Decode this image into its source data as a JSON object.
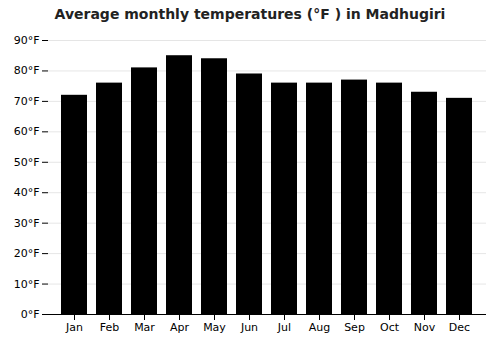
{
  "chart_data": {
    "type": "bar",
    "title": "Average monthly temperatures (°F ) in Madhugiri",
    "categories": [
      "Jan",
      "Feb",
      "Mar",
      "Apr",
      "May",
      "Jun",
      "Jul",
      "Aug",
      "Sep",
      "Oct",
      "Nov",
      "Dec"
    ],
    "values": [
      72,
      76,
      81,
      85,
      84,
      79,
      76,
      76,
      77,
      76,
      73,
      71
    ],
    "ylim": [
      0,
      90
    ],
    "yticks": [
      {
        "value": 0,
        "label": "0°F"
      },
      {
        "value": 10,
        "label": "10°F"
      },
      {
        "value": 20,
        "label": "20°F"
      },
      {
        "value": 30,
        "label": "30°F"
      },
      {
        "value": 40,
        "label": "40°F"
      },
      {
        "value": 50,
        "label": "50°F"
      },
      {
        "value": 60,
        "label": "60°F"
      },
      {
        "value": 70,
        "label": "70°F"
      },
      {
        "value": 80,
        "label": "80°F"
      },
      {
        "value": 90,
        "label": "90°F"
      }
    ],
    "grid": true
  }
}
